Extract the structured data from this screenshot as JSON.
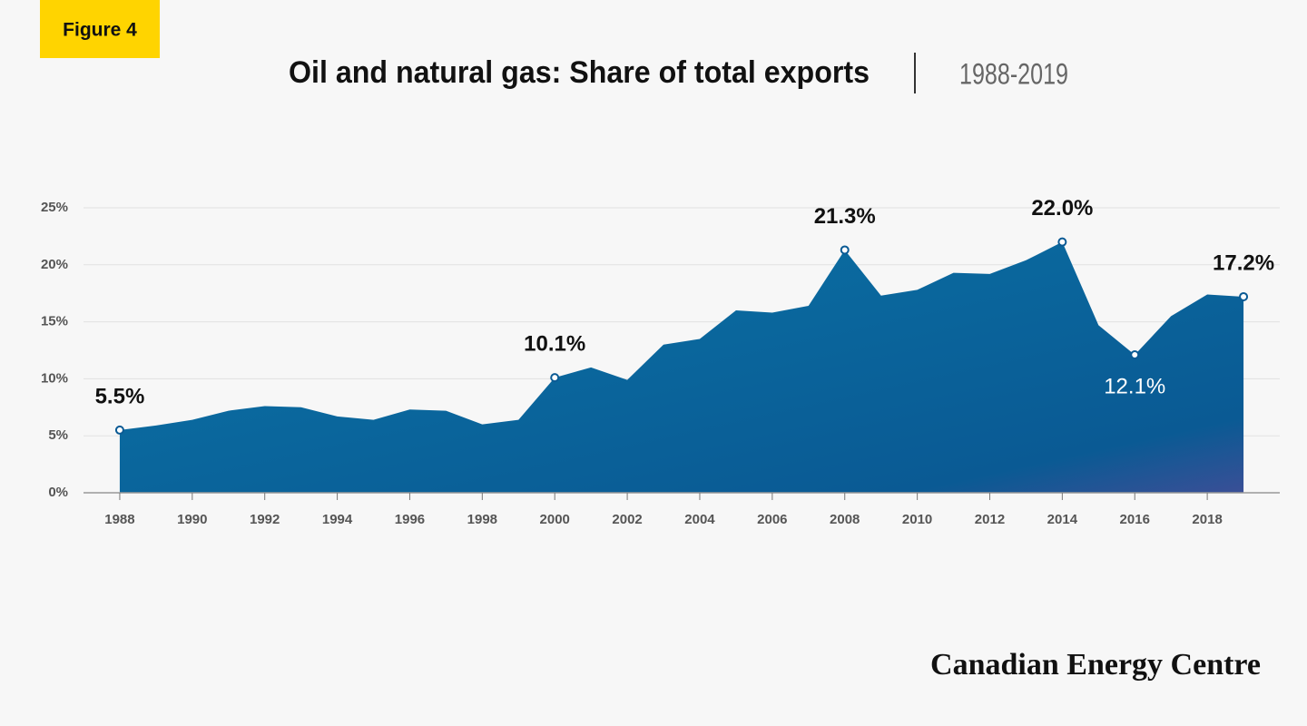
{
  "figure_label": "Figure 4",
  "brand": "Canadian Energy Centre",
  "chart_data": {
    "type": "area",
    "title": "Oil and natural gas: Share of total exports",
    "subtitle": "1988-2019",
    "x": [
      1988,
      1989,
      1990,
      1991,
      1992,
      1993,
      1994,
      1995,
      1996,
      1997,
      1998,
      1999,
      2000,
      2001,
      2002,
      2003,
      2004,
      2005,
      2006,
      2007,
      2008,
      2009,
      2010,
      2011,
      2012,
      2013,
      2014,
      2015,
      2016,
      2017,
      2018,
      2019
    ],
    "values": [
      5.5,
      5.9,
      6.4,
      7.2,
      7.6,
      7.5,
      6.7,
      6.4,
      7.3,
      7.2,
      6.0,
      6.4,
      10.1,
      11.0,
      9.9,
      13.0,
      13.5,
      16.0,
      15.8,
      16.4,
      21.3,
      17.3,
      17.8,
      19.3,
      19.2,
      20.4,
      22.0,
      14.7,
      12.1,
      15.5,
      17.4,
      17.2
    ],
    "value_labels": [
      "5.5%",
      null,
      null,
      null,
      null,
      null,
      null,
      null,
      null,
      null,
      null,
      null,
      "10.1%",
      null,
      null,
      null,
      null,
      null,
      null,
      null,
      "21.3%",
      null,
      null,
      null,
      null,
      null,
      "22.0%",
      null,
      "12.1%",
      null,
      null,
      "17.2%"
    ],
    "color": "#0a6a9e",
    "xlim": [
      1987,
      2020
    ],
    "xticks": [
      1988,
      1990,
      1992,
      1994,
      1996,
      1998,
      2000,
      2002,
      2004,
      2006,
      2008,
      2010,
      2012,
      2014,
      2016,
      2018
    ],
    "ylim": [
      0,
      25
    ],
    "yticks": [
      {
        "value": 0,
        "label": "0%"
      },
      {
        "value": 5,
        "label": "5%"
      },
      {
        "value": 10,
        "label": "10%"
      },
      {
        "value": 15,
        "label": "15%"
      },
      {
        "value": 20,
        "label": "20%"
      },
      {
        "value": 25,
        "label": "25%"
      }
    ],
    "grid": true
  }
}
